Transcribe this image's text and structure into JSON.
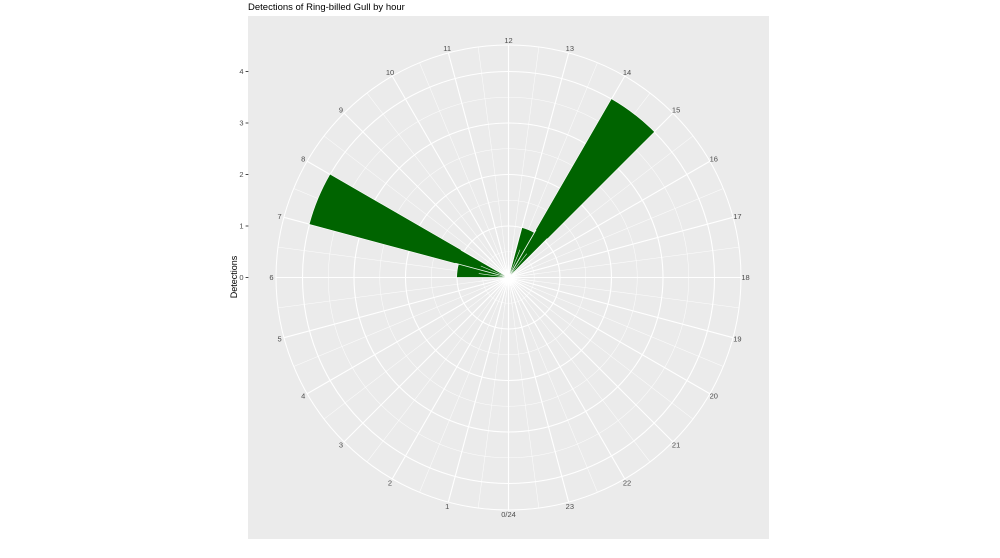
{
  "header": {
    "title": "Detections of Ring-billed Gull by hour"
  },
  "chart_data": {
    "type": "bar",
    "coord": "polar",
    "title": "Detections of Ring-billed Gull by hour",
    "xlabel": "",
    "ylabel": "Detections",
    "theta_unit": "hour of day",
    "theta_layout": "0/24 at bottom, 12 at top, hours increase clockwise",
    "bin_width_hours": 1,
    "bin_start_hours": [
      0,
      1,
      2,
      3,
      4,
      5,
      6,
      7,
      8,
      9,
      10,
      11,
      12,
      13,
      14,
      15,
      16,
      17,
      18,
      19,
      20,
      21,
      22,
      23
    ],
    "values": [
      0,
      0,
      0,
      0,
      0,
      0,
      1,
      4,
      0,
      0,
      0,
      0,
      0,
      1,
      4,
      0,
      0,
      0,
      0,
      0,
      0,
      0,
      0,
      0
    ],
    "hour_tick_labels": [
      "0/24",
      "1",
      "2",
      "3",
      "4",
      "5",
      "6",
      "7",
      "8",
      "9",
      "10",
      "11",
      "12",
      "13",
      "14",
      "15",
      "16",
      "17",
      "18",
      "19",
      "20",
      "21",
      "22",
      "23"
    ],
    "r_axis_ticks": [
      0,
      1,
      2,
      3,
      4
    ],
    "ylim": [
      0,
      4.5
    ],
    "grid": "white major gridlines every 1 hour and 1 detection; minor gridlines every 0.5 hour and 0.5 detection; grey panel",
    "legend": "none",
    "colors": {
      "bar": "#006400",
      "panel_background": "#ebebeb",
      "grid": "#ffffff",
      "tick_labels": "#4d4d4d",
      "title": "#000000",
      "page_background": "#ffffff"
    }
  }
}
